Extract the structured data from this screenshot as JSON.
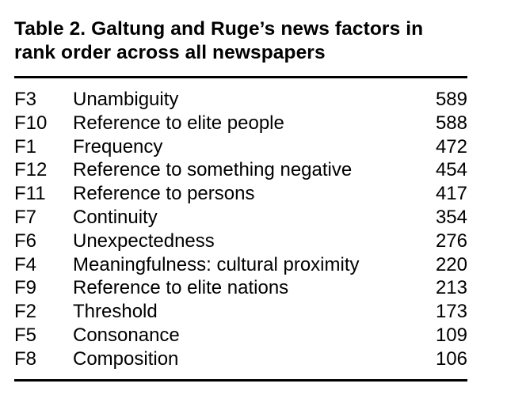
{
  "table": {
    "title_line1": "Table 2. Galtung and Ruge’s news factors in",
    "title_line2": "rank order across all newspapers",
    "rows": [
      {
        "code": "F3",
        "factor": "Unambiguity",
        "value": "589"
      },
      {
        "code": "F10",
        "factor": "Reference to elite people",
        "value": "588"
      },
      {
        "code": "F1",
        "factor": "Frequency",
        "value": "472"
      },
      {
        "code": "F12",
        "factor": "Reference to something negative",
        "value": "454"
      },
      {
        "code": "F11",
        "factor": "Reference to persons",
        "value": "417"
      },
      {
        "code": "F7",
        "factor": "Continuity",
        "value": "354"
      },
      {
        "code": "F6",
        "factor": "Unexpectedness",
        "value": "276"
      },
      {
        "code": "F4",
        "factor": "Meaningfulness: cultural proximity",
        "value": "220"
      },
      {
        "code": "F9",
        "factor": "Reference to elite nations",
        "value": "213"
      },
      {
        "code": "F2",
        "factor": "Threshold",
        "value": "173"
      },
      {
        "code": "F5",
        "factor": "Consonance",
        "value": "109"
      },
      {
        "code": "F8",
        "factor": "Composition",
        "value": "106"
      }
    ]
  }
}
